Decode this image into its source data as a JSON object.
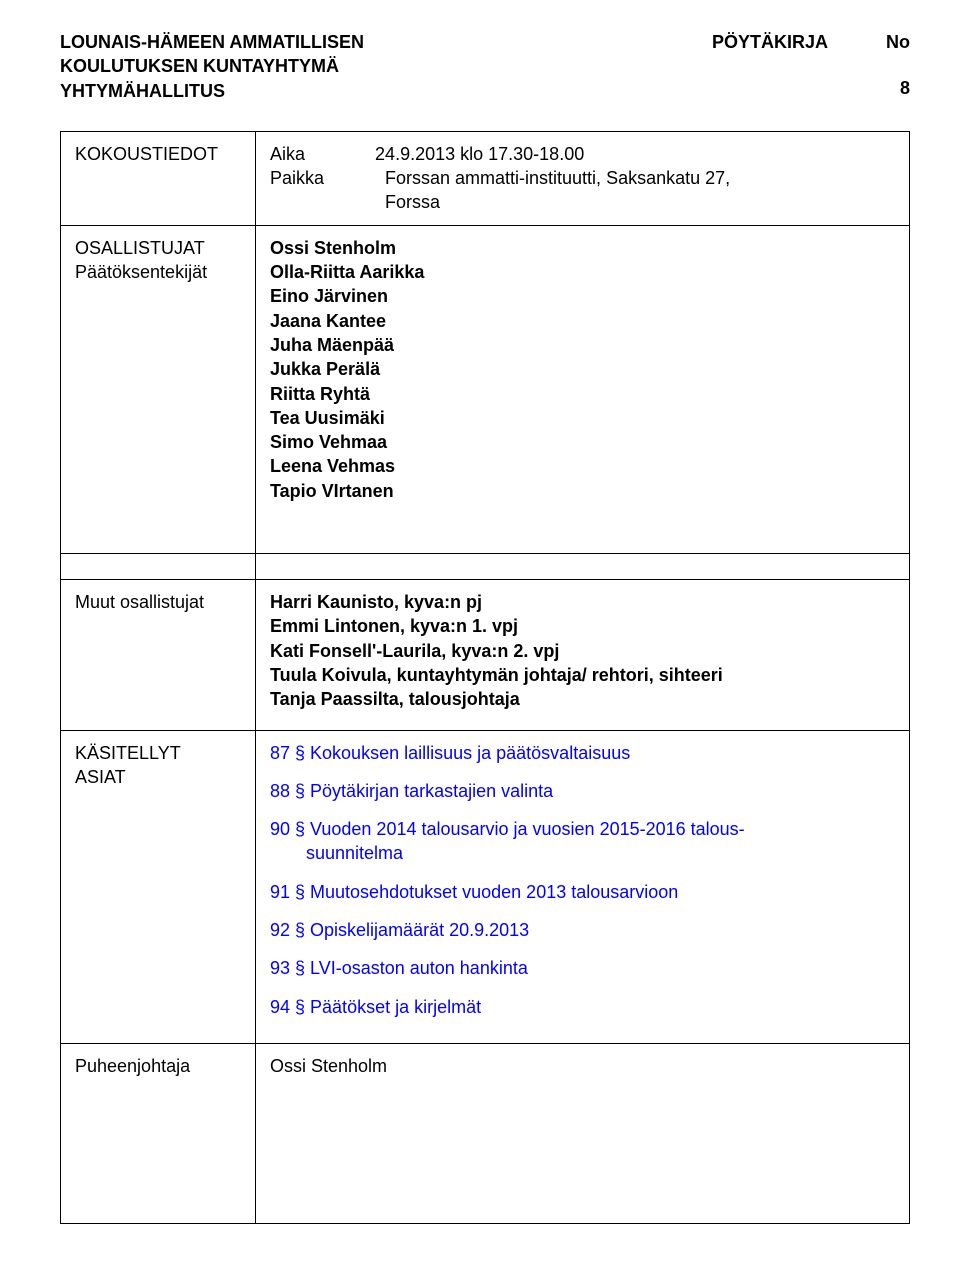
{
  "colors": {
    "text": "#000000",
    "link": "#0000ff",
    "background": "#ffffff",
    "border": "#000000"
  },
  "header": {
    "org_line1": "LOUNAIS-HÄMEEN AMMATILLISEN",
    "org_line2": "KOULUTUKSEN KUNTAYHTYMÄ",
    "org_line3": "YHTYMÄHALLITUS",
    "doc_type": "PÖYTÄKIRJA",
    "no_label": "No",
    "no_value": "8"
  },
  "rows": {
    "kokoustiedot": {
      "label": "KOKOUSTIEDOT",
      "aika_label": "Aika",
      "aika_value": "24.9.2013 klo 17.30-18.00",
      "paikka_label": "Paikka",
      "paikka_value_l1": "Forssan ammatti-instituutti, Saksankatu 27,",
      "paikka_value_l2": "Forssa"
    },
    "osallistujat": {
      "label_l1": "OSALLISTUJAT",
      "label_l2": "Päätöksentekijät",
      "people": [
        "Ossi Stenholm",
        "Olla-Riitta Aarikka",
        "Eino Järvinen",
        "Jaana Kantee",
        "Juha Mäenpää",
        "Jukka Perälä",
        "Riitta Ryhtä",
        "Tea Uusimäki",
        "Simo Vehmaa",
        "Leena Vehmas",
        "Tapio VIrtanen"
      ]
    },
    "muut": {
      "label": "Muut osallistujat",
      "lines": [
        "Harri Kaunisto, kyva:n pj",
        "Emmi Lintonen, kyva:n 1. vpj",
        "Kati Fonsell'-Laurila, kyva:n 2. vpj",
        "Tuula Koivula, kuntayhtymän johtaja/ rehtori, sihteeri",
        "Tanja Paassilta, talousjohtaja"
      ]
    },
    "asiat": {
      "label_l1": "KÄSITELLYT",
      "label_l2": "ASIAT",
      "items": [
        {
          "text": "87 § Kokouksen laillisuus ja päätösvaltaisuus"
        },
        {
          "text": "88 § Pöytäkirjan tarkastajien valinta"
        },
        {
          "text": "90 § Vuoden 2014 talousarvio ja vuosien 2015-2016 talous-",
          "cont": "suunnitelma"
        },
        {
          "text": "91 § Muutosehdotukset vuoden 2013 talousarvioon"
        },
        {
          "text": "92 § Opiskelijamäärät 20.9.2013"
        },
        {
          "text": "93 § LVI-osaston auton hankinta"
        },
        {
          "text": "94 § Päätökset ja kirjelmät"
        }
      ]
    },
    "puheenjohtaja": {
      "label": "Puheenjohtaja",
      "value": "Ossi Stenholm"
    }
  }
}
